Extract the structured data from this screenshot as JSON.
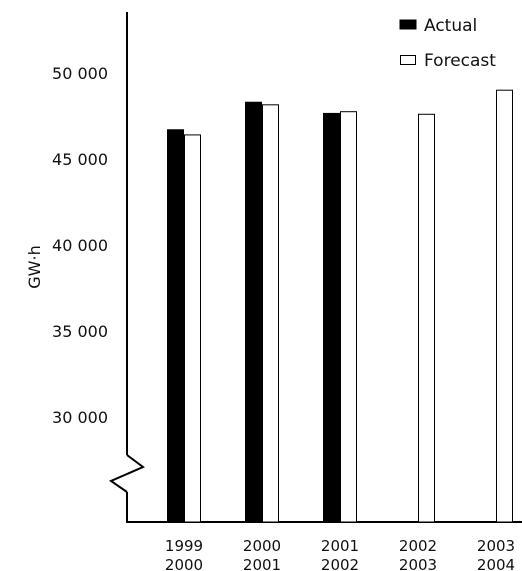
{
  "chart_data": {
    "type": "bar",
    "title": "",
    "xlabel": "",
    "ylabel": "GW·h",
    "categories": [
      [
        "1999",
        "2000"
      ],
      [
        "2000",
        "2001"
      ],
      [
        "2001",
        "2002"
      ],
      [
        "2002",
        "2003"
      ],
      [
        "2003",
        "2004"
      ]
    ],
    "series": [
      {
        "name": "Actual",
        "values": [
          46700,
          48300,
          47650,
          null,
          null
        ],
        "fill": "#000000"
      },
      {
        "name": "Forecast",
        "values": [
          46400,
          48150,
          47750,
          47600,
          49000
        ],
        "fill": "#ffffff"
      }
    ],
    "yticks": [
      30000,
      35000,
      40000,
      45000,
      50000
    ],
    "ytick_labels": [
      "30 000",
      "35 000",
      "40 000",
      "45 000",
      "50 000"
    ],
    "ylim": [
      25000,
      52500
    ],
    "axis_break": true,
    "grid": false,
    "legend_position": "top-right"
  }
}
